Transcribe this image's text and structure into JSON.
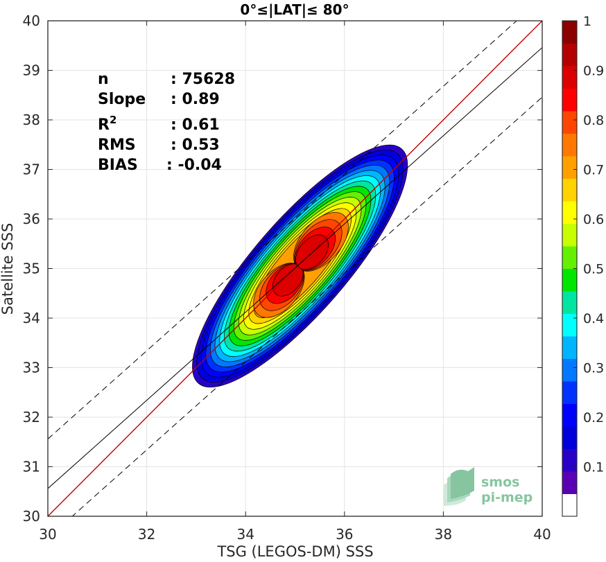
{
  "chart_data": {
    "type": "heatmap",
    "title": "0°≤|LAT|≤ 80°",
    "xlabel": "TSG (LEGOS-DM) SSS",
    "ylabel": "Satellite SSS",
    "xlim": [
      30,
      40
    ],
    "ylim": [
      30,
      40
    ],
    "xticks": [
      "30",
      "32",
      "34",
      "36",
      "38",
      "40"
    ],
    "yticks": [
      "30",
      "31",
      "32",
      "33",
      "34",
      "35",
      "36",
      "37",
      "38",
      "39",
      "40"
    ],
    "grid": true,
    "stats": [
      {
        "label": "n",
        "value": ": 75628"
      },
      {
        "label": "Slope",
        "value": ": 0.89"
      },
      {
        "label": "R²",
        "value": ": 0.61"
      },
      {
        "label": "RMS",
        "value": ": 0.53"
      },
      {
        "label": "BIAS",
        "value": ": -0.04"
      }
    ],
    "lines": {
      "identity": {
        "slope": 1,
        "intercept": 0,
        "color": "#c00000"
      },
      "regression": {
        "slope": 0.89,
        "intercept": 3.86,
        "color": "#000000"
      },
      "bounds_offset": 1.0
    },
    "density_center": {
      "x": 35.1,
      "y": 35.05
    },
    "density_levels": [
      0.05,
      0.1,
      0.15,
      0.2,
      0.25,
      0.3,
      0.35,
      0.4,
      0.45,
      0.5,
      0.55,
      0.6,
      0.65,
      0.7,
      0.75,
      0.8,
      0.85,
      0.9
    ],
    "colorbar": {
      "min": 0,
      "max": 1,
      "ticks": [
        "0.1",
        "0.2",
        "0.3",
        "0.4",
        "0.5",
        "0.6",
        "0.7",
        "0.8",
        "0.9",
        "1"
      ],
      "colors": [
        "#ffffff",
        "#5a00b4",
        "#2800c8",
        "#0000dc",
        "#0000ff",
        "#0032ff",
        "#0078ff",
        "#00b4ff",
        "#00ffff",
        "#00e6a0",
        "#00e600",
        "#64f000",
        "#c8ff00",
        "#ffff00",
        "#ffd200",
        "#ffa000",
        "#ff7800",
        "#ff4600",
        "#ff0000",
        "#dc0000",
        "#b40000",
        "#8c0000"
      ]
    }
  },
  "logo": {
    "line1": "smos",
    "line2": "pi-mep"
  }
}
